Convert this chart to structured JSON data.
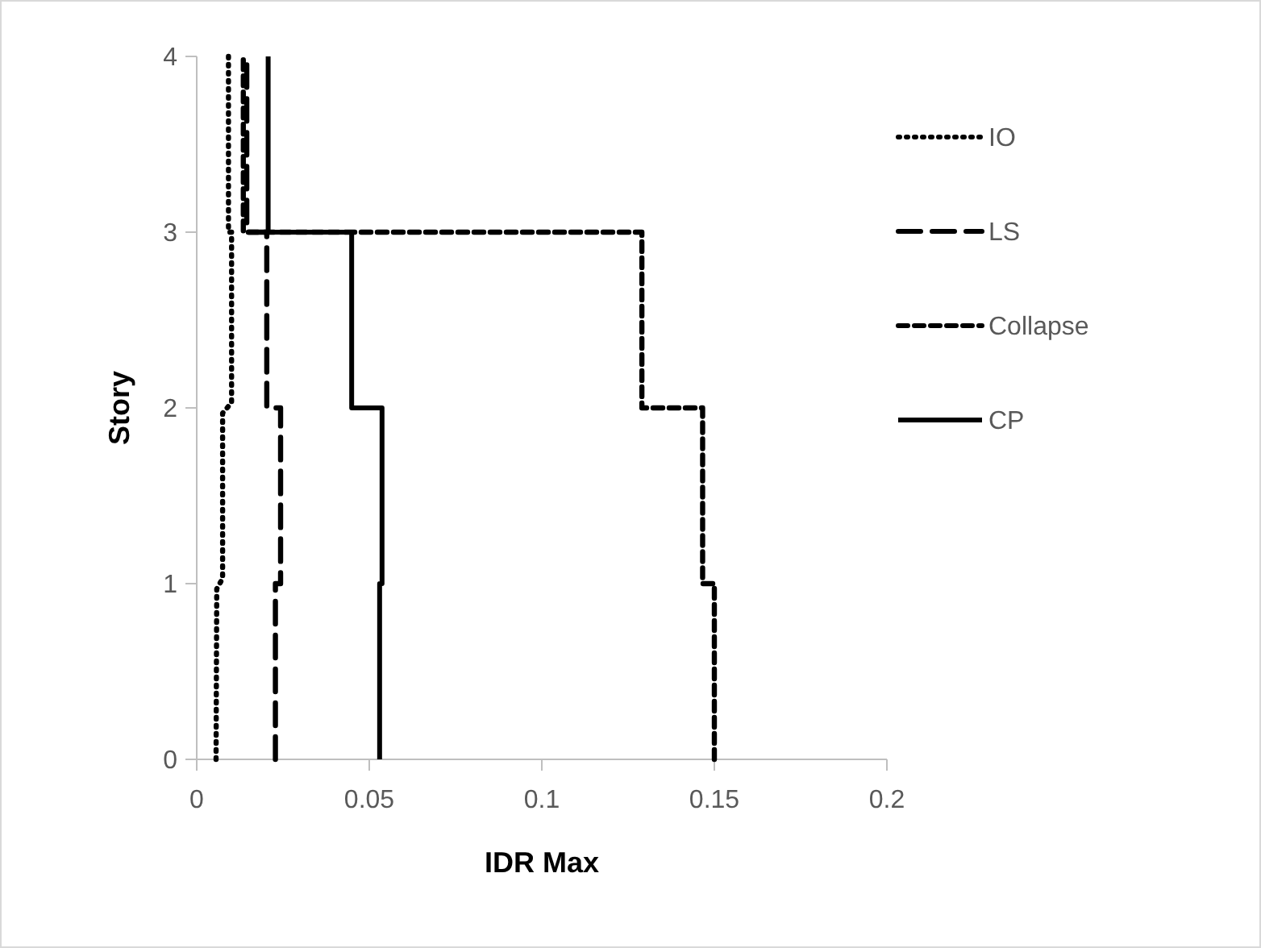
{
  "chart_data": {
    "type": "line",
    "xlabel": "IDR Max",
    "ylabel": "Story",
    "xlim": [
      0,
      0.2
    ],
    "xticks": [
      0,
      0.05,
      0.1,
      0.15,
      0.2
    ],
    "ylim": [
      0,
      4
    ],
    "yticks": [
      0,
      1,
      2,
      3,
      4
    ],
    "grid": false,
    "legend": "right",
    "marker": "none",
    "series": [
      {
        "name": "IO",
        "color": "#000000",
        "line_style": "dotted",
        "x": [
          0.0056,
          0.0058,
          0.0075,
          0.0075,
          0.0101,
          0.0101,
          0.0092,
          0.0092
        ],
        "values": [
          0,
          0.97,
          1.03,
          1.97,
          2.03,
          3,
          3,
          4
        ]
      },
      {
        "name": "LS",
        "color": "#000000",
        "line_style": "dashed",
        "x": [
          0.0228,
          0.0228,
          0.0243,
          0.0243,
          0.0203,
          0.0203,
          0.0145,
          0.0145
        ],
        "values": [
          0,
          1,
          1,
          2,
          2,
          3,
          3,
          4
        ]
      },
      {
        "name": "Collapse",
        "color": "#000000",
        "line_style": "shortdash",
        "x": [
          0.15,
          0.15,
          0.1466,
          0.1466,
          0.129,
          0.129,
          0.0135,
          0.0135
        ],
        "values": [
          0,
          1,
          1,
          2,
          2,
          3,
          3,
          4
        ]
      },
      {
        "name": "CP",
        "color": "#000000",
        "line_style": "solid",
        "x": [
          0.053,
          0.053,
          0.0537,
          0.0537,
          0.0449,
          0.0449,
          0.0207,
          0.0207
        ],
        "values": [
          0,
          1,
          1,
          2,
          2,
          3,
          3,
          4
        ]
      }
    ]
  }
}
